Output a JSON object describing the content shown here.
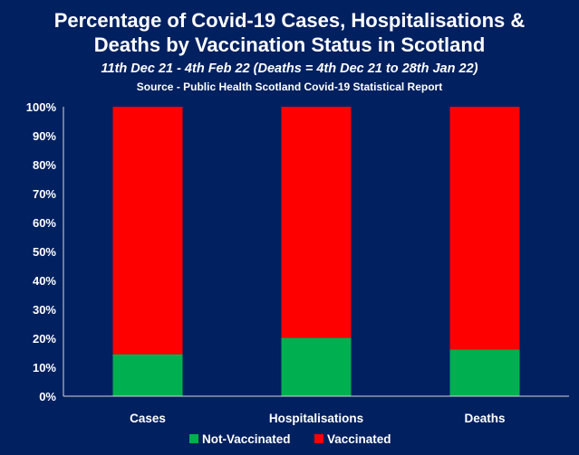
{
  "chart_data": {
    "type": "bar",
    "stacked": true,
    "title_lines": [
      "Percentage of Covid-19 Cases, Hospitalisations &",
      "Deaths by Vaccination Status in Scotland"
    ],
    "subtitle": "11th Dec 21 - 4th Feb 22 (Deaths = 4th Dec 21 to 28th Jan 22)",
    "source": "Source - Public Health Scotland Covid-19 Statistical Report",
    "categories": [
      "Cases",
      "Hospitalisations",
      "Deaths"
    ],
    "series": [
      {
        "name": "Not-Vaccinated",
        "values": [
          14.5,
          20.2,
          16.1
        ],
        "color": "#00B050"
      },
      {
        "name": "Vaccinated",
        "values": [
          85.5,
          79.8,
          83.9
        ],
        "color": "#FF0000"
      }
    ],
    "yticks": [
      "0%",
      "10%",
      "20%",
      "30%",
      "40%",
      "50%",
      "60%",
      "70%",
      "80%",
      "90%",
      "100%"
    ],
    "ylim": [
      0,
      100
    ],
    "grid": false,
    "legend": "bottom",
    "background": "#002060"
  }
}
